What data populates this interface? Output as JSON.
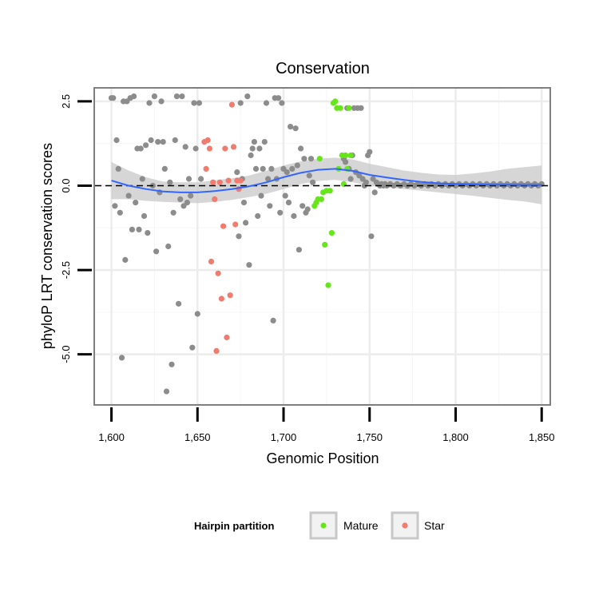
{
  "chart_data": {
    "type": "scatter",
    "title": "Conservation",
    "xlabel": "Genomic Position",
    "ylabel": "phyloP LRT conservation scores",
    "xlim": [
      1590,
      1855
    ],
    "ylim": [
      -6.5,
      2.9
    ],
    "xticks": [
      1600,
      1650,
      1700,
      1750,
      1800,
      1850
    ],
    "xtick_labels": [
      "1,600",
      "1,650",
      "1,700",
      "1,750",
      "1,800",
      "1,850"
    ],
    "yticks": [
      -5.0,
      -2.5,
      0.0,
      2.5
    ],
    "ytick_labels": [
      "-5.0",
      "-2.5",
      "0.0",
      "2.5"
    ],
    "hline": {
      "y": 0.0,
      "style": "dashed"
    },
    "legend": {
      "title": "Hairpin partition",
      "position": "bottom"
    },
    "colors": {
      "other": "#8c8c8c",
      "Mature": "#66e619",
      "Star": "#f07b6e",
      "smooth": "#3366ff",
      "ribbon": "#c8c8c8"
    },
    "series": [
      {
        "name": "Other",
        "legend": false,
        "points": [
          [
            1600,
            2.6
          ],
          [
            1601,
            2.6
          ],
          [
            1602,
            -0.6
          ],
          [
            1603,
            1.35
          ],
          [
            1604,
            0.5
          ],
          [
            1605,
            -0.8
          ],
          [
            1606,
            -5.1
          ],
          [
            1607,
            2.5
          ],
          [
            1608,
            -2.2
          ],
          [
            1609,
            2.5
          ],
          [
            1610,
            -0.3
          ],
          [
            1611,
            2.6
          ],
          [
            1612,
            -1.3
          ],
          [
            1613,
            2.65
          ],
          [
            1614,
            -0.5
          ],
          [
            1615,
            1.1
          ],
          [
            1616,
            -1.3
          ],
          [
            1617,
            1.1
          ],
          [
            1618,
            0.2
          ],
          [
            1619,
            -0.9
          ],
          [
            1620,
            1.2
          ],
          [
            1621,
            -1.4
          ],
          [
            1622,
            2.45
          ],
          [
            1623,
            1.35
          ],
          [
            1624,
            0.0
          ],
          [
            1625,
            2.65
          ],
          [
            1626,
            -1.95
          ],
          [
            1627,
            1.3
          ],
          [
            1628,
            -0.2
          ],
          [
            1629,
            2.5
          ],
          [
            1630,
            1.3
          ],
          [
            1631,
            0.5
          ],
          [
            1632,
            -6.1
          ],
          [
            1633,
            -1.8
          ],
          [
            1634,
            0.1
          ],
          [
            1635,
            -5.3
          ],
          [
            1636,
            -0.8
          ],
          [
            1637,
            1.35
          ],
          [
            1638,
            2.65
          ],
          [
            1639,
            -3.5
          ],
          [
            1640,
            -0.4
          ],
          [
            1641,
            2.65
          ],
          [
            1642,
            -0.6
          ],
          [
            1643,
            1.15
          ],
          [
            1644,
            -0.5
          ],
          [
            1645,
            0.2
          ],
          [
            1646,
            -0.3
          ],
          [
            1647,
            -4.8
          ],
          [
            1648,
            2.45
          ],
          [
            1649,
            1.1
          ],
          [
            1650,
            -3.8
          ],
          [
            1651,
            2.45
          ],
          [
            1652,
            0.2
          ],
          [
            1673,
            0.4
          ],
          [
            1674,
            -1.5
          ],
          [
            1675,
            2.45
          ],
          [
            1676,
            0.2
          ],
          [
            1677,
            -0.5
          ],
          [
            1678,
            -1.1
          ],
          [
            1679,
            2.65
          ],
          [
            1680,
            -2.35
          ],
          [
            1681,
            0.9
          ],
          [
            1682,
            1.1
          ],
          [
            1683,
            1.3
          ],
          [
            1684,
            0.5
          ],
          [
            1685,
            -0.9
          ],
          [
            1686,
            1.1
          ],
          [
            1687,
            -0.3
          ],
          [
            1688,
            0.5
          ],
          [
            1689,
            1.3
          ],
          [
            1690,
            2.45
          ],
          [
            1691,
            0.2
          ],
          [
            1692,
            -0.6
          ],
          [
            1693,
            0.5
          ],
          [
            1694,
            -4.0
          ],
          [
            1695,
            2.6
          ],
          [
            1696,
            0.2
          ],
          [
            1697,
            2.6
          ],
          [
            1698,
            -0.8
          ],
          [
            1699,
            2.45
          ],
          [
            1700,
            0.5
          ],
          [
            1701,
            -0.3
          ],
          [
            1702,
            0.4
          ],
          [
            1703,
            -0.5
          ],
          [
            1704,
            1.75
          ],
          [
            1705,
            0.5
          ],
          [
            1706,
            -0.9
          ],
          [
            1707,
            1.7
          ],
          [
            1708,
            0.6
          ],
          [
            1709,
            -1.9
          ],
          [
            1710,
            1.1
          ],
          [
            1711,
            -0.6
          ],
          [
            1712,
            0.8
          ],
          [
            1713,
            -0.8
          ],
          [
            1714,
            -0.7
          ],
          [
            1715,
            0.3
          ],
          [
            1716,
            0.8
          ],
          [
            1717,
            0.1
          ],
          [
            1735,
            0.8
          ],
          [
            1736,
            0.7
          ],
          [
            1737,
            2.3
          ],
          [
            1738,
            0.5
          ],
          [
            1739,
            0.2
          ],
          [
            1740,
            0.9
          ],
          [
            1741,
            2.3
          ],
          [
            1742,
            0.4
          ],
          [
            1743,
            2.3
          ],
          [
            1744,
            0.3
          ],
          [
            1745,
            2.3
          ],
          [
            1746,
            0.2
          ],
          [
            1747,
            0.0
          ],
          [
            1748,
            0.1
          ],
          [
            1749,
            0.9
          ],
          [
            1750,
            1.0
          ],
          [
            1751,
            -1.5
          ],
          [
            1752,
            0.2
          ],
          [
            1753,
            -0.2
          ],
          [
            1754,
            0.1
          ],
          [
            1755,
            0.05
          ],
          [
            1756,
            0.0
          ],
          [
            1757,
            0.05
          ],
          [
            1758,
            0.0
          ],
          [
            1759,
            0.05
          ],
          [
            1760,
            0.0
          ],
          [
            1762,
            0.05
          ],
          [
            1764,
            0.0
          ],
          [
            1766,
            0.05
          ],
          [
            1768,
            0.0
          ],
          [
            1770,
            0.05
          ],
          [
            1772,
            0.0
          ],
          [
            1774,
            0.05
          ],
          [
            1776,
            0.0
          ],
          [
            1778,
            0.05
          ],
          [
            1780,
            0.0
          ],
          [
            1782,
            0.05
          ],
          [
            1784,
            0.0
          ],
          [
            1786,
            0.05
          ],
          [
            1788,
            0.0
          ],
          [
            1790,
            0.05
          ],
          [
            1792,
            0.0
          ],
          [
            1794,
            0.05
          ],
          [
            1796,
            0.0
          ],
          [
            1798,
            0.05
          ],
          [
            1800,
            0.0
          ],
          [
            1802,
            0.05
          ],
          [
            1804,
            0.0
          ],
          [
            1806,
            0.05
          ],
          [
            1808,
            0.0
          ],
          [
            1810,
            0.05
          ],
          [
            1812,
            0.0
          ],
          [
            1814,
            0.05
          ],
          [
            1816,
            0.0
          ],
          [
            1818,
            0.05
          ],
          [
            1820,
            0.0
          ],
          [
            1822,
            0.05
          ],
          [
            1824,
            0.0
          ],
          [
            1826,
            0.05
          ],
          [
            1828,
            0.0
          ],
          [
            1830,
            0.05
          ],
          [
            1832,
            0.0
          ],
          [
            1834,
            0.05
          ],
          [
            1836,
            0.0
          ],
          [
            1838,
            0.05
          ],
          [
            1840,
            0.0
          ],
          [
            1842,
            0.05
          ],
          [
            1844,
            0.0
          ],
          [
            1846,
            0.05
          ],
          [
            1848,
            0.0
          ],
          [
            1850,
            0.05
          ]
        ]
      },
      {
        "name": "Mature",
        "legend": true,
        "points": [
          [
            1718,
            -0.6
          ],
          [
            1719,
            -0.5
          ],
          [
            1720,
            -0.4
          ],
          [
            1721,
            0.8
          ],
          [
            1722,
            -0.4
          ],
          [
            1723,
            -0.2
          ],
          [
            1724,
            -1.75
          ],
          [
            1725,
            -0.15
          ],
          [
            1726,
            -2.95
          ],
          [
            1727,
            -0.15
          ],
          [
            1728,
            -1.4
          ],
          [
            1729,
            2.45
          ],
          [
            1730,
            2.5
          ],
          [
            1731,
            2.3
          ],
          [
            1732,
            0.5
          ],
          [
            1733,
            2.3
          ],
          [
            1734,
            0.9
          ],
          [
            1735,
            0.05
          ],
          [
            1736,
            0.9
          ],
          [
            1737,
            0.5
          ],
          [
            1738,
            2.3
          ],
          [
            1739,
            0.9
          ]
        ]
      },
      {
        "name": "Star",
        "legend": true,
        "points": [
          [
            1654,
            1.3
          ],
          [
            1655,
            0.5
          ],
          [
            1656,
            1.35
          ],
          [
            1657,
            1.1
          ],
          [
            1658,
            -2.25
          ],
          [
            1659,
            0.1
          ],
          [
            1660,
            -0.4
          ],
          [
            1661,
            -4.9
          ],
          [
            1662,
            -2.6
          ],
          [
            1663,
            0.1
          ],
          [
            1664,
            -3.35
          ],
          [
            1665,
            -1.2
          ],
          [
            1666,
            1.1
          ],
          [
            1667,
            -4.5
          ],
          [
            1668,
            0.15
          ],
          [
            1669,
            -3.25
          ],
          [
            1670,
            2.4
          ],
          [
            1671,
            1.15
          ],
          [
            1672,
            -1.15
          ],
          [
            1673,
            0.15
          ],
          [
            1674,
            -0.1
          ],
          [
            1675,
            0.15
          ]
        ]
      }
    ],
    "smooth": {
      "x": [
        1600,
        1610,
        1620,
        1630,
        1640,
        1650,
        1660,
        1670,
        1680,
        1690,
        1700,
        1710,
        1720,
        1730,
        1740,
        1750,
        1760,
        1770,
        1780,
        1790,
        1800,
        1810,
        1820,
        1830,
        1840,
        1850
      ],
      "y": [
        0.15,
        0.0,
        -0.1,
        -0.17,
        -0.2,
        -0.2,
        -0.16,
        -0.1,
        -0.02,
        0.1,
        0.25,
        0.38,
        0.47,
        0.5,
        0.44,
        0.32,
        0.24,
        0.17,
        0.11,
        0.07,
        0.05,
        0.04,
        0.03,
        0.03,
        0.02,
        0.02
      ],
      "lo": [
        -0.4,
        -0.4,
        -0.45,
        -0.48,
        -0.5,
        -0.52,
        -0.48,
        -0.42,
        -0.34,
        -0.24,
        -0.1,
        0.05,
        0.14,
        0.17,
        0.1,
        0.0,
        -0.05,
        -0.1,
        -0.15,
        -0.2,
        -0.25,
        -0.3,
        -0.36,
        -0.42,
        -0.47,
        -0.55
      ],
      "hi": [
        0.7,
        0.45,
        0.25,
        0.12,
        0.1,
        0.1,
        0.16,
        0.22,
        0.3,
        0.44,
        0.6,
        0.72,
        0.8,
        0.83,
        0.78,
        0.65,
        0.55,
        0.45,
        0.38,
        0.33,
        0.32,
        0.36,
        0.42,
        0.5,
        0.55,
        0.6
      ]
    }
  }
}
